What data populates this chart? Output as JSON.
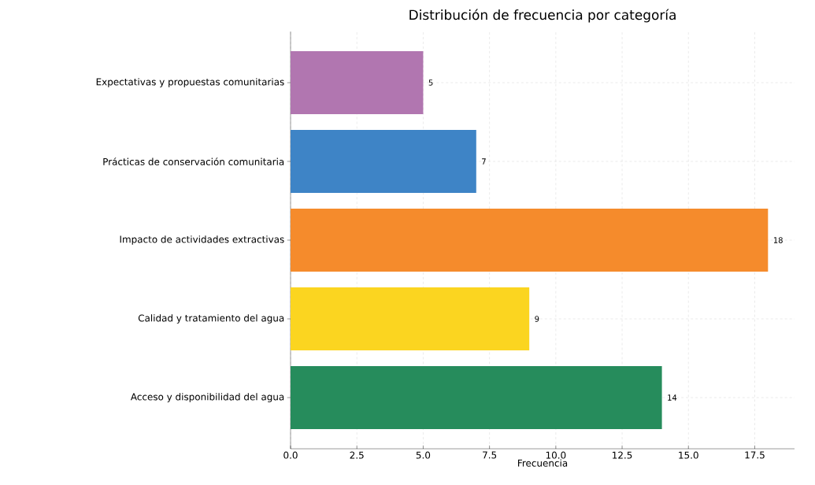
{
  "chart_data": {
    "type": "bar",
    "orientation": "horizontal",
    "title": "Distribución de frecuencia por categoría",
    "xlabel": "Frecuencia",
    "categories": [
      "Expectativas y propuestas comunitarias",
      "Prácticas de conservación comunitaria",
      "Impacto de actividades extractivas",
      "Calidad y tratamiento del agua",
      "Acceso y disponibilidad del agua"
    ],
    "values": [
      5,
      7,
      18,
      9,
      14
    ],
    "colors": [
      "#b176b0",
      "#3e84c6",
      "#f58b2c",
      "#fbd520",
      "#268c5c"
    ],
    "xlim": [
      0,
      19
    ],
    "xticks": [
      {
        "value": 0,
        "label": "0.0"
      },
      {
        "value": 2.5,
        "label": "2.5"
      },
      {
        "value": 5,
        "label": "5.0"
      },
      {
        "value": 7.5,
        "label": "7.5"
      },
      {
        "value": 10,
        "label": "10.0"
      },
      {
        "value": 12.5,
        "label": "12.5"
      },
      {
        "value": 15,
        "label": "15.0"
      },
      {
        "value": 17.5,
        "label": "17.5"
      }
    ],
    "data_labels": true,
    "grid": true
  }
}
